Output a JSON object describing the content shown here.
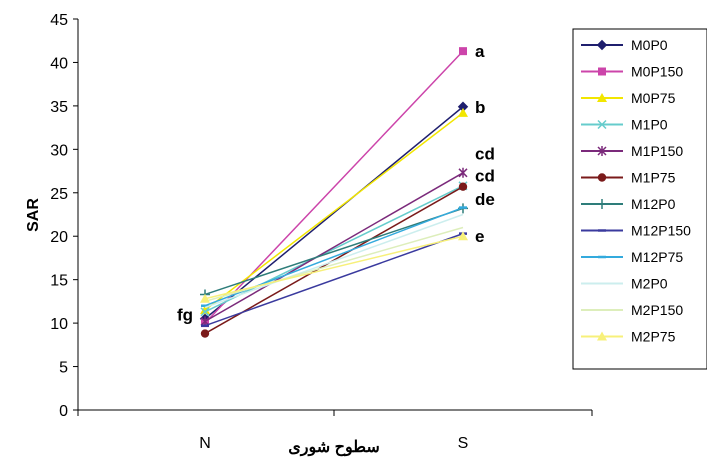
{
  "chart_data": {
    "type": "line",
    "title": "",
    "ylabel": "SAR",
    "xlabel": "سطوح شوری",
    "categories": [
      "N",
      "S"
    ],
    "ylim": [
      0,
      45
    ],
    "yticks": [
      0,
      5,
      10,
      15,
      20,
      25,
      30,
      35,
      40,
      45
    ],
    "legend_position": "right",
    "series": [
      {
        "name": "M0P0",
        "values": [
          10.5,
          34.9
        ],
        "color": "#1f1f6e",
        "marker": "diamond"
      },
      {
        "name": "M0P150",
        "values": [
          10.0,
          41.3
        ],
        "color": "#cc44aa",
        "marker": "square"
      },
      {
        "name": "M0P75",
        "values": [
          11.5,
          34.2
        ],
        "color": "#f2e600",
        "marker": "triangle"
      },
      {
        "name": "M1P0",
        "values": [
          11.3,
          25.8
        ],
        "color": "#66cccc",
        "marker": "x"
      },
      {
        "name": "M1P150",
        "values": [
          10.2,
          27.3
        ],
        "color": "#7b2a7b",
        "marker": "star"
      },
      {
        "name": "M1P75",
        "values": [
          8.8,
          25.7
        ],
        "color": "#7a1a1a",
        "marker": "circle"
      },
      {
        "name": "M12P0",
        "values": [
          13.3,
          23.2
        ],
        "color": "#2e7d7a",
        "marker": "plus"
      },
      {
        "name": "M12P150",
        "values": [
          9.7,
          20.3
        ],
        "color": "#3a3a9e",
        "marker": "dash"
      },
      {
        "name": "M12P75",
        "values": [
          12.0,
          23.3
        ],
        "color": "#33aadd",
        "marker": "dash"
      },
      {
        "name": "M2P0",
        "values": [
          11.8,
          22.5
        ],
        "color": "#cceeee",
        "marker": "none"
      },
      {
        "name": "M2P150",
        "values": [
          12.5,
          21.0
        ],
        "color": "#ddeebb",
        "marker": "none"
      },
      {
        "name": "M2P75",
        "values": [
          12.8,
          20.0
        ],
        "color": "#f7f07a",
        "marker": "triangle"
      }
    ],
    "annotations": [
      {
        "text": "a",
        "category": "S",
        "y": 41.3
      },
      {
        "text": "b",
        "category": "S",
        "y": 34.9
      },
      {
        "text": "cd",
        "category": "S",
        "y": 29.5
      },
      {
        "text": "cd",
        "category": "S",
        "y": 27.0
      },
      {
        "text": "de",
        "category": "S",
        "y": 24.3
      },
      {
        "text": "e",
        "category": "S",
        "y": 20.0
      },
      {
        "text": "fg",
        "category": "N",
        "y": 11.0
      }
    ]
  }
}
